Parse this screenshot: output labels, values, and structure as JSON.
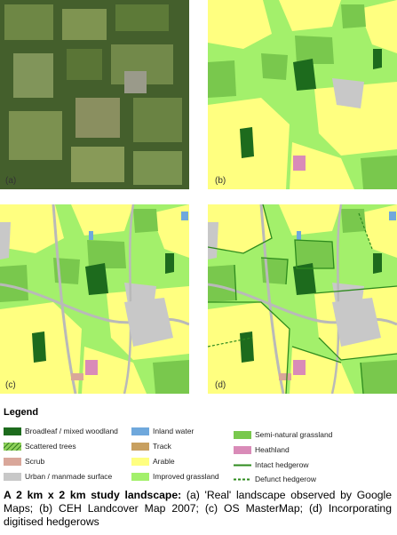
{
  "panels": [
    {
      "label": "(a)"
    },
    {
      "label": "(b)"
    },
    {
      "label": "(c)"
    },
    {
      "label": "(d)"
    }
  ],
  "legend": {
    "title": "Legend",
    "items": [
      {
        "label": "Broadleaf / mixed woodland"
      },
      {
        "label": "Scattered trees"
      },
      {
        "label": "Scrub"
      },
      {
        "label": "Urban / manmade surface"
      },
      {
        "label": "Inland water"
      },
      {
        "label": "Track"
      },
      {
        "label": "Arable"
      },
      {
        "label": "Improved grassland"
      },
      {
        "label": "Semi-natural grassland"
      },
      {
        "label": "Heathland"
      },
      {
        "label": "Intact hedgerow"
      },
      {
        "label": "Defunct hedgerow"
      }
    ]
  },
  "caption": {
    "lead": "A 2 km x 2 km study landscape:",
    "text": "(a) 'Real' landscape observed by Google Maps; (b) CEH Landcover Map 2007; (c) OS MasterMap; (d) Incorporating digitised hedgerows"
  }
}
